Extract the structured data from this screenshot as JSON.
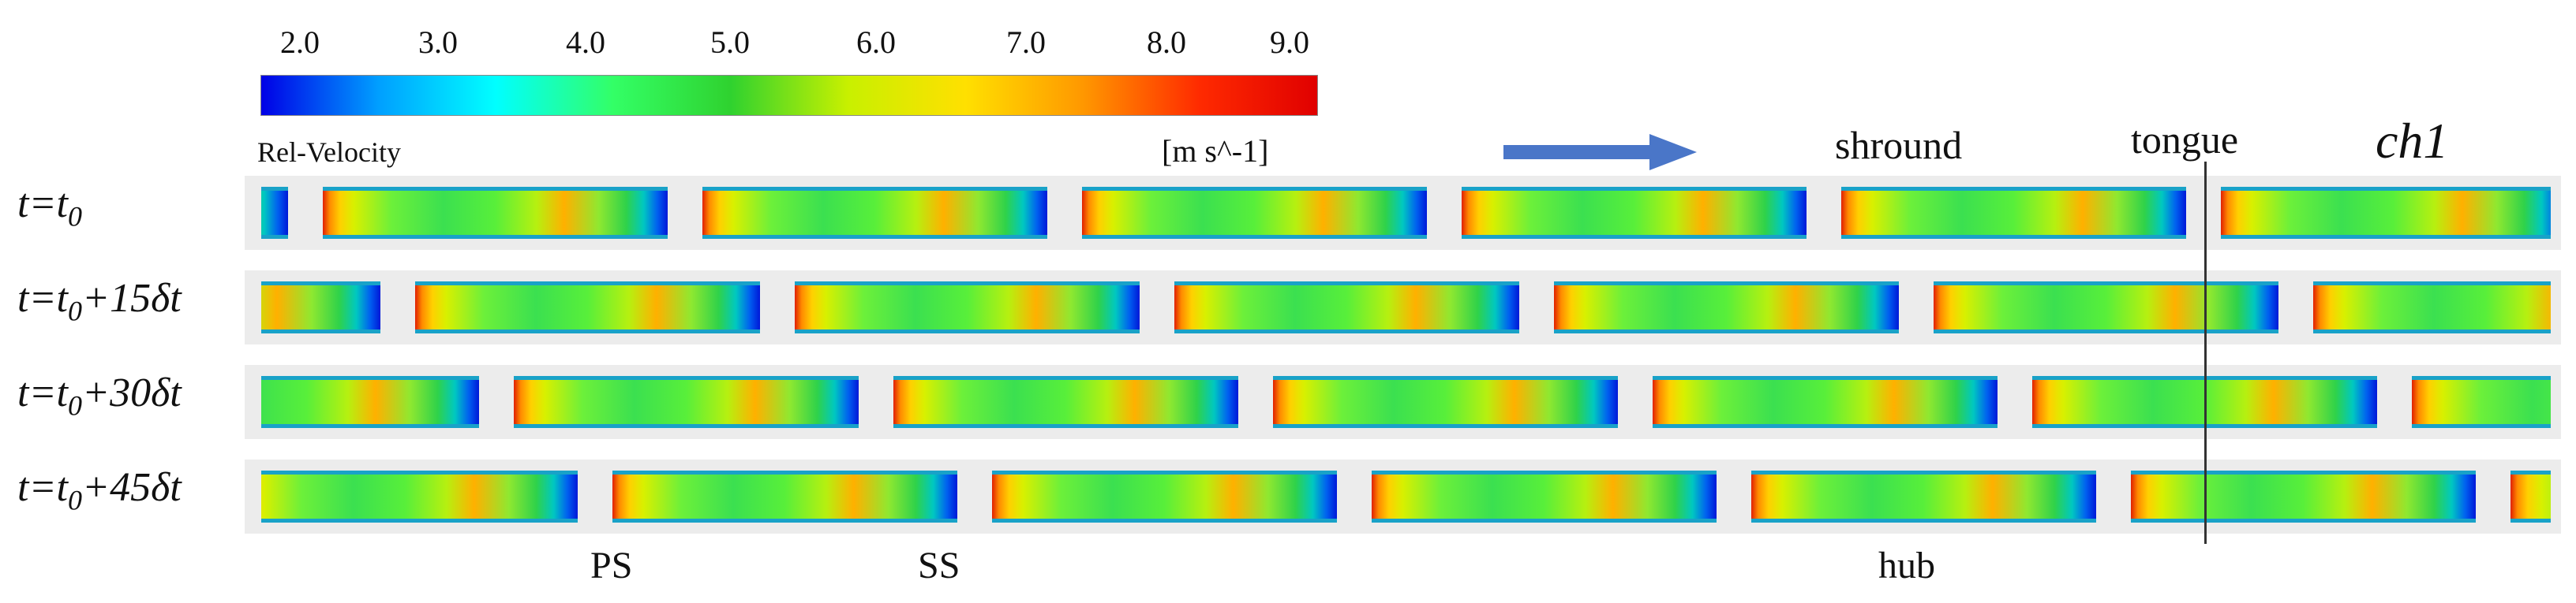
{
  "legend": {
    "title": "Rel-Velocity",
    "units": "[m s^-1]",
    "ticks": [
      "2.0",
      "3.0",
      "4.0",
      "5.0",
      "6.0",
      "7.0",
      "8.0",
      "9.0"
    ],
    "range": [
      2.0,
      9.0
    ],
    "gradient_colors": [
      "#0000e6",
      "#009fff",
      "#00ffff",
      "#33ff66",
      "#2fd22f",
      "#c8f000",
      "#ffe000",
      "#ff9800",
      "#ff2a00",
      "#e00000"
    ]
  },
  "flow_arrow": {
    "color": "#4a76c8",
    "icon": "right-arrow-icon"
  },
  "region_labels": {
    "shroud": "shround",
    "tongue": "tongue",
    "channel": "ch1",
    "pressure_side": "PS",
    "suction_side": "SS",
    "hub": "hub"
  },
  "rows": [
    {
      "label_base": "t=t",
      "label_sub": "0",
      "label_tail": "",
      "channels": 7
    },
    {
      "label_base": "t=t",
      "label_sub": "0",
      "label_tail": "+15δt",
      "channels": 7
    },
    {
      "label_base": "t=t",
      "label_sub": "0",
      "label_tail": "+30δt",
      "channels": 7
    },
    {
      "label_base": "t=t",
      "label_sub": "0",
      "label_tail": "+45δt",
      "channels": 7
    }
  ]
}
